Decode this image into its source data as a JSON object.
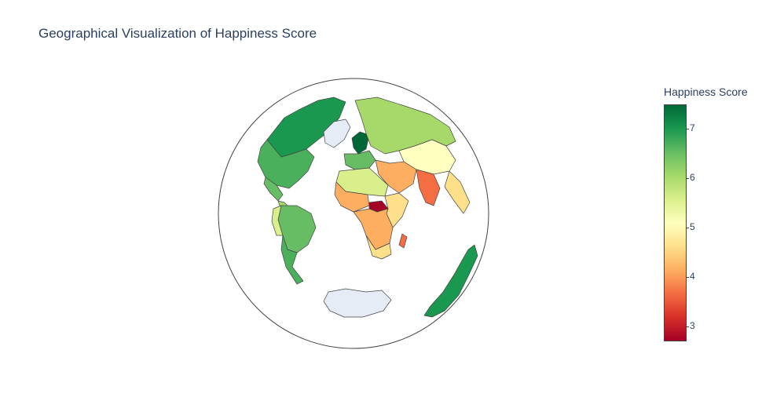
{
  "title": "Geographical Visualization of Happiness Score",
  "colorbar": {
    "title": "Happiness Score",
    "ticks": [
      {
        "label": "7",
        "value": 7
      },
      {
        "label": "6",
        "value": 6
      },
      {
        "label": "5",
        "value": 5
      },
      {
        "label": "4",
        "value": 4
      },
      {
        "label": "3",
        "value": 3
      }
    ],
    "range": [
      2.7,
      7.5
    ],
    "colorscale": [
      "#a50026",
      "#d73027",
      "#f46d43",
      "#fdae61",
      "#fee08b",
      "#ffffbf",
      "#d9ef8b",
      "#a6d96a",
      "#66bd63",
      "#1a9850",
      "#006837"
    ]
  },
  "map": {
    "projection": "orthographic",
    "no_data_color": "#e5ecf6",
    "border_color": "#444444",
    "regions": [
      {
        "name": "Canada",
        "score": 7.2
      },
      {
        "name": "United States",
        "score": 6.9
      },
      {
        "name": "Greenland",
        "score": null
      },
      {
        "name": "Mexico",
        "score": 6.4
      },
      {
        "name": "Brazil",
        "score": 6.3
      },
      {
        "name": "Argentina",
        "score": 6.1
      },
      {
        "name": "Russia",
        "score": 5.9
      },
      {
        "name": "Nordics",
        "score": 7.5
      },
      {
        "name": "Western Europe",
        "score": 6.6
      },
      {
        "name": "India",
        "score": 4.0
      },
      {
        "name": "Central African Republic",
        "score": 2.7
      },
      {
        "name": "Madagascar",
        "score": 3.6
      },
      {
        "name": "Australia",
        "score": 7.2
      },
      {
        "name": "Antarctica",
        "score": null
      }
    ]
  }
}
